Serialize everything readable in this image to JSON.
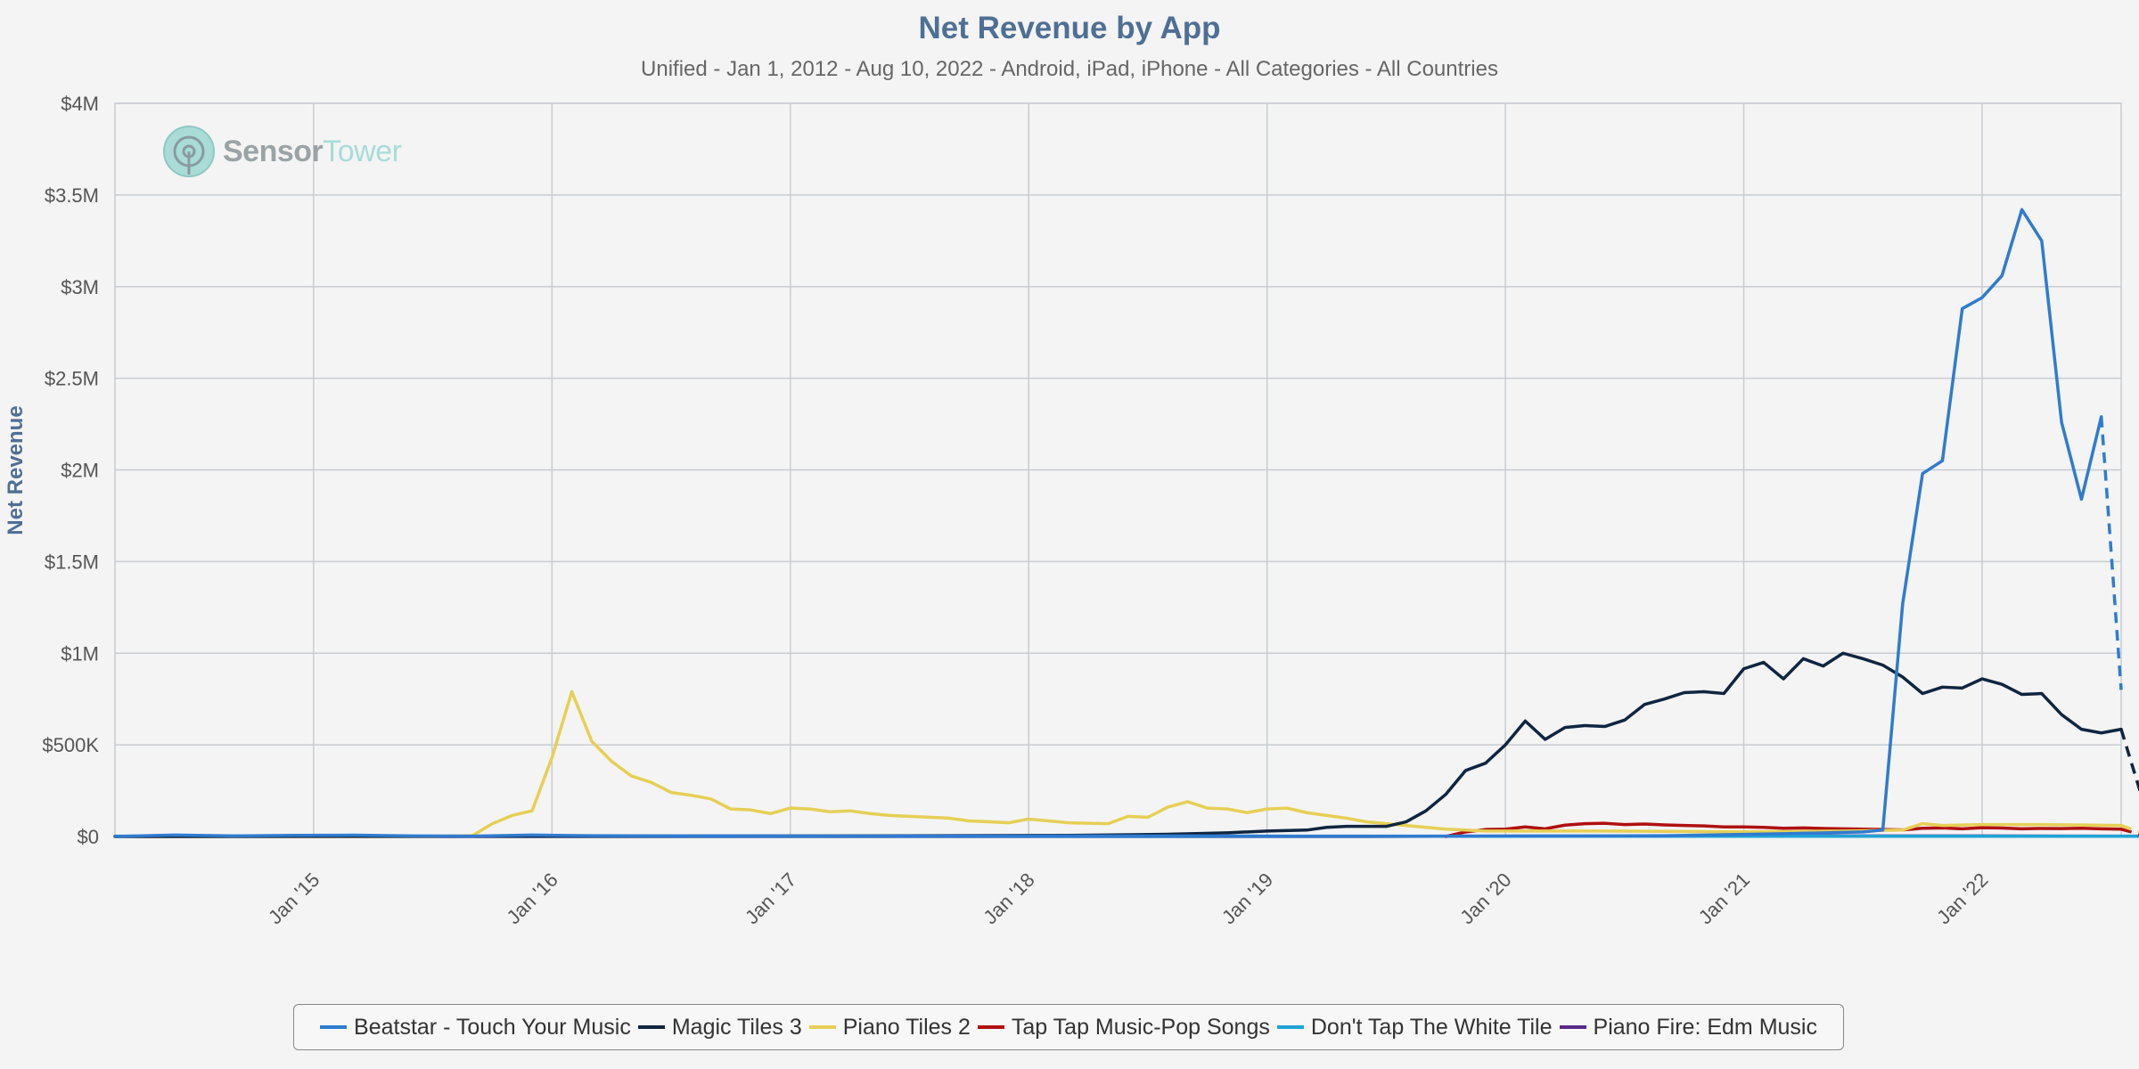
{
  "title": "Net Revenue by App",
  "subtitle": "Unified - Jan 1, 2012 - Aug 10, 2022 - Android, iPad, iPhone - All Categories - All Countries",
  "watermark": {
    "word1": "Sensor",
    "word2": "Tower"
  },
  "colors": {
    "background": "#f4f4f4",
    "grid": "#c8ccd0",
    "title": "#4f6f94"
  },
  "chart_data": {
    "type": "line",
    "ylabel": "Net Revenue",
    "xlabel": "",
    "ylim": [
      0,
      4000000
    ],
    "yticks": [
      {
        "value": 0,
        "label": "$0"
      },
      {
        "value": 500000,
        "label": "$500K"
      },
      {
        "value": 1000000,
        "label": "$1M"
      },
      {
        "value": 1500000,
        "label": "$1.5M"
      },
      {
        "value": 2000000,
        "label": "$2M"
      },
      {
        "value": 2500000,
        "label": "$2.5M"
      },
      {
        "value": 3000000,
        "label": "$3M"
      },
      {
        "value": 3500000,
        "label": "$3.5M"
      },
      {
        "value": 4000000,
        "label": "$4M"
      }
    ],
    "xlim": [
      "2014-03",
      "2022-08"
    ],
    "xticks": [
      {
        "date": "2015-01",
        "label": "Jan '15"
      },
      {
        "date": "2016-01",
        "label": "Jan '16"
      },
      {
        "date": "2017-01",
        "label": "Jan '17"
      },
      {
        "date": "2018-01",
        "label": "Jan '18"
      },
      {
        "date": "2019-01",
        "label": "Jan '19"
      },
      {
        "date": "2020-01",
        "label": "Jan '20"
      },
      {
        "date": "2021-01",
        "label": "Jan '21"
      },
      {
        "date": "2022-01",
        "label": "Jan '22"
      }
    ],
    "grid": true,
    "legend_position": "bottom",
    "series": [
      {
        "name": "Beatstar - Touch Your Music",
        "color": "#2f7bd0",
        "last_segment_dashed": true,
        "points": [
          [
            "2014-03",
            0
          ],
          [
            "2014-06",
            8000
          ],
          [
            "2014-09",
            3000
          ],
          [
            "2014-12",
            6000
          ],
          [
            "2015-03",
            7000
          ],
          [
            "2015-06",
            3000
          ],
          [
            "2015-09",
            2000
          ],
          [
            "2015-12",
            8000
          ],
          [
            "2016-03",
            4000
          ],
          [
            "2016-09",
            3000
          ],
          [
            "2017-03",
            2000
          ],
          [
            "2017-09",
            2000
          ],
          [
            "2018-03",
            3000
          ],
          [
            "2018-09",
            3000
          ],
          [
            "2019-03",
            2000
          ],
          [
            "2019-09",
            2000
          ],
          [
            "2020-03",
            3000
          ],
          [
            "2020-09",
            4000
          ],
          [
            "2021-03",
            15000
          ],
          [
            "2021-07",
            25000
          ],
          [
            "2021-08",
            35000
          ],
          [
            "2021-09",
            1270000
          ],
          [
            "2021-10",
            1980000
          ],
          [
            "2021-11",
            2050000
          ],
          [
            "2021-12",
            2880000
          ],
          [
            "2022-01",
            2940000
          ],
          [
            "2022-02",
            3060000
          ],
          [
            "2022-03",
            3420000
          ],
          [
            "2022-04",
            3250000
          ],
          [
            "2022-05",
            2260000
          ],
          [
            "2022-06",
            1840000
          ],
          [
            "2022-07",
            2290000
          ],
          [
            "2022-08",
            800000
          ]
        ]
      },
      {
        "name": "Magic Tiles 3",
        "color": "#0f2540",
        "last_segment_dashed": true,
        "points": [
          [
            "2014-03",
            0
          ],
          [
            "2015-03",
            1000
          ],
          [
            "2016-03",
            2000
          ],
          [
            "2017-03",
            3000
          ],
          [
            "2017-09",
            4000
          ],
          [
            "2018-03",
            6000
          ],
          [
            "2018-08",
            12000
          ],
          [
            "2018-11",
            20000
          ],
          [
            "2019-01",
            30000
          ],
          [
            "2019-03",
            35000
          ],
          [
            "2019-04",
            50000
          ],
          [
            "2019-05",
            55000
          ],
          [
            "2019-07",
            55000
          ],
          [
            "2019-08",
            80000
          ],
          [
            "2019-09",
            140000
          ],
          [
            "2019-10",
            230000
          ],
          [
            "2019-11",
            360000
          ],
          [
            "2019-12",
            400000
          ],
          [
            "2020-01",
            500000
          ],
          [
            "2020-02",
            630000
          ],
          [
            "2020-03",
            530000
          ],
          [
            "2020-04",
            595000
          ],
          [
            "2020-05",
            605000
          ],
          [
            "2020-06",
            600000
          ],
          [
            "2020-07",
            635000
          ],
          [
            "2020-08",
            720000
          ],
          [
            "2020-09",
            750000
          ],
          [
            "2020-10",
            785000
          ],
          [
            "2020-11",
            790000
          ],
          [
            "2020-12",
            780000
          ],
          [
            "2021-01",
            915000
          ],
          [
            "2021-02",
            950000
          ],
          [
            "2021-03",
            860000
          ],
          [
            "2021-04",
            970000
          ],
          [
            "2021-05",
            930000
          ],
          [
            "2021-06",
            1000000
          ],
          [
            "2021-07",
            970000
          ],
          [
            "2021-08",
            935000
          ],
          [
            "2021-09",
            870000
          ],
          [
            "2021-10",
            780000
          ],
          [
            "2021-11",
            815000
          ],
          [
            "2021-12",
            810000
          ],
          [
            "2022-01",
            860000
          ],
          [
            "2022-02",
            830000
          ],
          [
            "2022-03",
            775000
          ],
          [
            "2022-04",
            780000
          ],
          [
            "2022-05",
            665000
          ],
          [
            "2022-06",
            585000
          ],
          [
            "2022-07",
            565000
          ],
          [
            "2022-08",
            585000
          ],
          [
            "2022-09",
            230000
          ]
        ]
      },
      {
        "name": "Piano Tiles 2",
        "color": "#e6cf55",
        "last_segment_dashed": true,
        "points": [
          [
            "2014-03",
            0
          ],
          [
            "2015-07",
            0
          ],
          [
            "2015-09",
            5000
          ],
          [
            "2015-10",
            70000
          ],
          [
            "2015-11",
            115000
          ],
          [
            "2015-12",
            140000
          ],
          [
            "2016-01",
            430000
          ],
          [
            "2016-02",
            790000
          ],
          [
            "2016-03",
            520000
          ],
          [
            "2016-04",
            410000
          ],
          [
            "2016-05",
            330000
          ],
          [
            "2016-06",
            295000
          ],
          [
            "2016-07",
            240000
          ],
          [
            "2016-08",
            225000
          ],
          [
            "2016-09",
            205000
          ],
          [
            "2016-10",
            150000
          ],
          [
            "2016-11",
            145000
          ],
          [
            "2016-12",
            125000
          ],
          [
            "2017-01",
            155000
          ],
          [
            "2017-02",
            150000
          ],
          [
            "2017-03",
            135000
          ],
          [
            "2017-04",
            140000
          ],
          [
            "2017-05",
            125000
          ],
          [
            "2017-06",
            115000
          ],
          [
            "2017-07",
            110000
          ],
          [
            "2017-08",
            105000
          ],
          [
            "2017-09",
            100000
          ],
          [
            "2017-10",
            85000
          ],
          [
            "2017-11",
            80000
          ],
          [
            "2017-12",
            75000
          ],
          [
            "2018-01",
            95000
          ],
          [
            "2018-02",
            85000
          ],
          [
            "2018-03",
            75000
          ],
          [
            "2018-04",
            72000
          ],
          [
            "2018-05",
            70000
          ],
          [
            "2018-06",
            110000
          ],
          [
            "2018-07",
            105000
          ],
          [
            "2018-08",
            160000
          ],
          [
            "2018-09",
            190000
          ],
          [
            "2018-10",
            155000
          ],
          [
            "2018-11",
            150000
          ],
          [
            "2018-12",
            130000
          ],
          [
            "2019-01",
            150000
          ],
          [
            "2019-02",
            155000
          ],
          [
            "2019-03",
            130000
          ],
          [
            "2019-04",
            115000
          ],
          [
            "2019-05",
            100000
          ],
          [
            "2019-06",
            80000
          ],
          [
            "2019-07",
            70000
          ],
          [
            "2019-08",
            60000
          ],
          [
            "2019-09",
            50000
          ],
          [
            "2019-10",
            40000
          ],
          [
            "2019-11",
            35000
          ],
          [
            "2019-12",
            30000
          ],
          [
            "2020-06",
            30000
          ],
          [
            "2021-01",
            25000
          ],
          [
            "2021-06",
            30000
          ],
          [
            "2021-09",
            35000
          ],
          [
            "2021-10",
            70000
          ],
          [
            "2021-11",
            60000
          ],
          [
            "2022-01",
            65000
          ],
          [
            "2022-04",
            65000
          ],
          [
            "2022-08",
            60000
          ],
          [
            "2022-09",
            20000
          ]
        ]
      },
      {
        "name": "Tap Tap Music-Pop Songs",
        "color": "#b01010",
        "last_segment_dashed": true,
        "points": [
          [
            "2019-10",
            0
          ],
          [
            "2019-11",
            25000
          ],
          [
            "2019-12",
            38000
          ],
          [
            "2020-01",
            40000
          ],
          [
            "2020-02",
            52000
          ],
          [
            "2020-03",
            42000
          ],
          [
            "2020-04",
            62000
          ],
          [
            "2020-05",
            70000
          ],
          [
            "2020-06",
            72000
          ],
          [
            "2020-07",
            65000
          ],
          [
            "2020-08",
            68000
          ],
          [
            "2020-09",
            63000
          ],
          [
            "2020-10",
            60000
          ],
          [
            "2020-11",
            58000
          ],
          [
            "2020-12",
            52000
          ],
          [
            "2021-01",
            52000
          ],
          [
            "2021-02",
            50000
          ],
          [
            "2021-03",
            45000
          ],
          [
            "2021-04",
            47000
          ],
          [
            "2021-05",
            44000
          ],
          [
            "2021-06",
            42000
          ],
          [
            "2021-07",
            40000
          ],
          [
            "2021-08",
            38000
          ],
          [
            "2021-09",
            36000
          ],
          [
            "2021-10",
            45000
          ],
          [
            "2021-11",
            47000
          ],
          [
            "2021-12",
            42000
          ],
          [
            "2022-01",
            48000
          ],
          [
            "2022-02",
            46000
          ],
          [
            "2022-03",
            42000
          ],
          [
            "2022-04",
            44000
          ],
          [
            "2022-05",
            43000
          ],
          [
            "2022-06",
            45000
          ],
          [
            "2022-07",
            42000
          ],
          [
            "2022-08",
            40000
          ],
          [
            "2022-09",
            10000
          ]
        ]
      },
      {
        "name": "Don't Tap The White Tile",
        "color": "#1fa3d6",
        "last_segment_dashed": false,
        "points": [
          [
            "2014-03",
            2000
          ],
          [
            "2015-01",
            2000
          ],
          [
            "2016-01",
            1000
          ],
          [
            "2017-01",
            1000
          ],
          [
            "2018-01",
            1000
          ],
          [
            "2019-01",
            1000
          ],
          [
            "2020-01",
            1000
          ],
          [
            "2021-01",
            1000
          ],
          [
            "2022-01",
            1000
          ],
          [
            "2022-09",
            1000
          ]
        ]
      },
      {
        "name": "Piano Fire: Edm Music",
        "color": "#5a2a8a",
        "last_segment_dashed": false,
        "points": [
          [
            "2014-03",
            0
          ],
          [
            "2016-01",
            0
          ],
          [
            "2018-01",
            0
          ],
          [
            "2019-06",
            0
          ],
          [
            "2020-01",
            2000
          ],
          [
            "2021-01",
            3000
          ],
          [
            "2022-01",
            3000
          ],
          [
            "2022-09",
            2000
          ]
        ]
      }
    ]
  }
}
